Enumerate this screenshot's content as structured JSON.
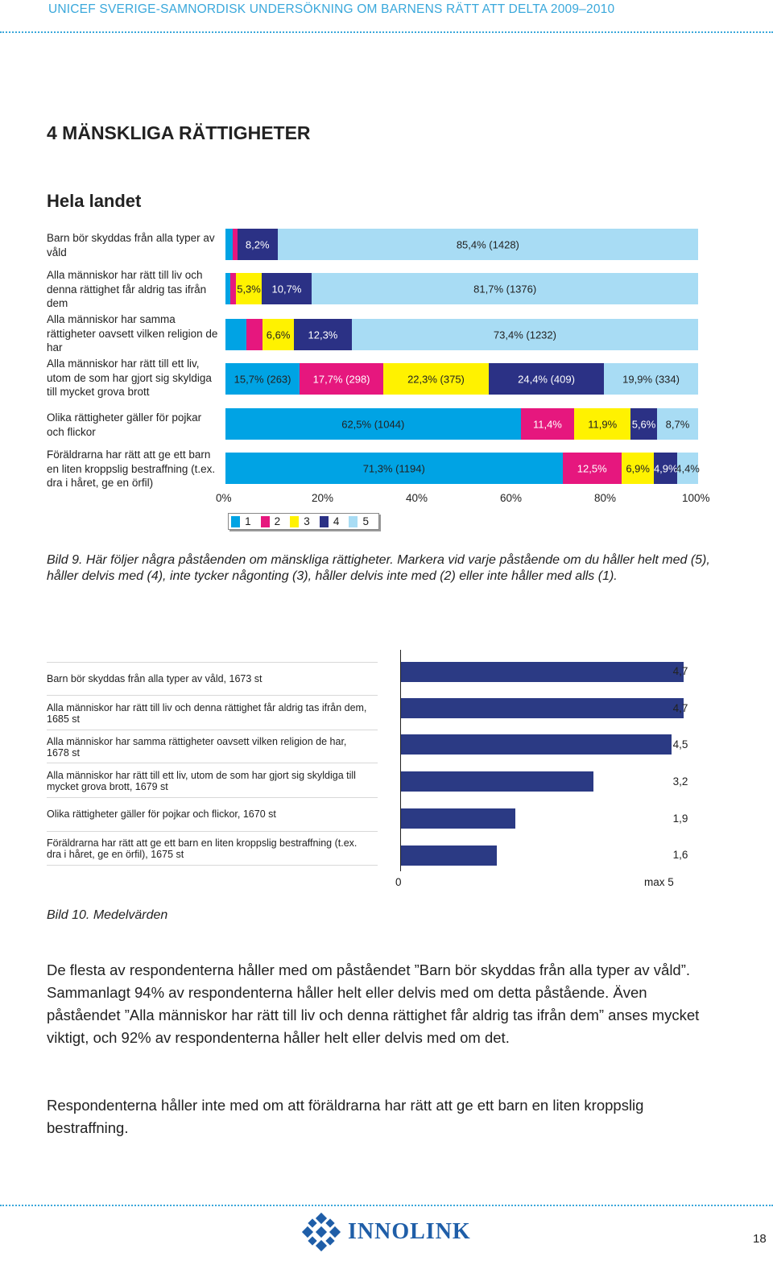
{
  "header": "UNICEF SVERIGE-SAMNORDISK UNDERSÖKNING OM BARNENS RÄTT ATT DELTA 2009–2010",
  "section_title": "4 MÄNSKLIGA RÄTTIGHETER",
  "subsection_title": "Hela landet",
  "colors": {
    "c1": "#00a3e4",
    "c2": "#e6177e",
    "c3": "#fff200",
    "c4": "#2b3185",
    "c5": "#a8dcf4",
    "accent": "#3aa8db"
  },
  "chart1": {
    "rows": [
      {
        "label": "Barn bör skyddas från alla typer av våld",
        "segments": [
          {
            "v": 1.4,
            "text": ""
          },
          {
            "v": 1.0,
            "text": ""
          },
          {
            "v": 0.0,
            "text": ""
          },
          {
            "v": 8.2,
            "text": "8,2%"
          },
          {
            "v": 85.4,
            "text": "85,4% (1428)"
          }
        ]
      },
      {
        "label": "Alla människor har rätt till liv och denna rättighet får aldrig tas ifrån dem",
        "segments": [
          {
            "v": 1.0,
            "text": ""
          },
          {
            "v": 1.3,
            "text": ""
          },
          {
            "v": 5.3,
            "text": "5,3%"
          },
          {
            "v": 10.7,
            "text": "10,7%"
          },
          {
            "v": 81.7,
            "text": "81,7% (1376)"
          }
        ]
      },
      {
        "label": "Alla människor har samma rättigheter oavsett vilken religion de har",
        "segments": [
          {
            "v": 4.4,
            "text": ""
          },
          {
            "v": 3.5,
            "text": ""
          },
          {
            "v": 6.6,
            "text": "6,6%"
          },
          {
            "v": 12.3,
            "text": "12,3%"
          },
          {
            "v": 73.4,
            "text": "73,4% (1232)"
          }
        ]
      },
      {
        "label": "Alla människor har rätt till ett liv, utom de som har gjort sig skyldiga till mycket grova brott",
        "segments": [
          {
            "v": 15.7,
            "text": "15,7% (263)"
          },
          {
            "v": 17.7,
            "text": "17,7% (298)"
          },
          {
            "v": 22.3,
            "text": "22,3% (375)"
          },
          {
            "v": 24.4,
            "text": "24,4% (409)"
          },
          {
            "v": 19.9,
            "text": "19,9% (334)"
          }
        ]
      },
      {
        "label": "Olika rättigheter gäller för pojkar och flickor",
        "segments": [
          {
            "v": 62.5,
            "text": "62,5% (1044)"
          },
          {
            "v": 11.4,
            "text": "11,4%"
          },
          {
            "v": 11.9,
            "text": "11,9%"
          },
          {
            "v": 5.6,
            "text": "5,6%"
          },
          {
            "v": 8.7,
            "text": "8,7%"
          }
        ]
      },
      {
        "label": "Föräldrarna har rätt att ge ett barn en liten kroppslig bestraffning (t.ex. dra i håret, ge en örfil)",
        "segments": [
          {
            "v": 71.3,
            "text": "71,3% (1194)"
          },
          {
            "v": 12.5,
            "text": "12,5%"
          },
          {
            "v": 6.9,
            "text": "6,9%"
          },
          {
            "v": 4.9,
            "text": "4,9%"
          },
          {
            "v": 4.4,
            "text": "4,4%"
          }
        ]
      }
    ],
    "axis_ticks": [
      "0%",
      "20%",
      "40%",
      "60%",
      "80%",
      "100%"
    ],
    "legend": [
      "1",
      "2",
      "3",
      "4",
      "5"
    ]
  },
  "caption1": "Bild 9. Här följer några påståenden om mänskliga rättigheter. Markera vid varje påstående om du håller helt med (5), håller delvis med (4), inte tycker någonting (3), håller delvis inte med (2) eller inte håller med alls (1).",
  "chart_data": {
    "type": "bar",
    "categories": [
      "Barn bör skyddas från alla typer av våld, 1673 st",
      "Alla människor har rätt till liv och denna rättighet får aldrig tas ifrån dem, 1685 st",
      "Alla människor har samma rättigheter oavsett vilken religion de har, 1678 st",
      "Alla människor har rätt till ett liv, utom de som har gjort sig skyldiga till mycket grova brott, 1679 st",
      "Olika rättigheter gäller för pojkar och flickor, 1670 st",
      "Föräldrarna har rätt att ge ett barn en liten kroppslig bestraffning (t.ex. dra i håret, ge en örfil), 1675 st"
    ],
    "values": [
      4.7,
      4.7,
      4.5,
      3.2,
      1.9,
      1.6
    ],
    "value_labels": [
      "4,7",
      "4,7",
      "4,5",
      "3,2",
      "1,9",
      "1,6"
    ],
    "xlim": [
      0,
      5
    ],
    "axis_labels": [
      "0",
      "max 5"
    ]
  },
  "caption2": "Bild 10. Medelvärden",
  "paragraph1": "De flesta av respondenterna håller med om påståendet ”Barn bör skyddas från alla typer av våld”. Sammanlagt 94% av respondenterna håller helt eller delvis med om detta påstående. Även påståendet ”Alla människor har rätt till liv och denna rättighet får aldrig tas ifrån dem” anses mycket viktigt, och 92% av respondenterna håller helt eller delvis med om det.",
  "paragraph2": "Respondenterna håller inte med om att föräldrarna har rätt att ge ett barn en liten kroppslig bestraffning.",
  "footer": {
    "logo_text": "INNOLINK",
    "page_number": "18"
  }
}
